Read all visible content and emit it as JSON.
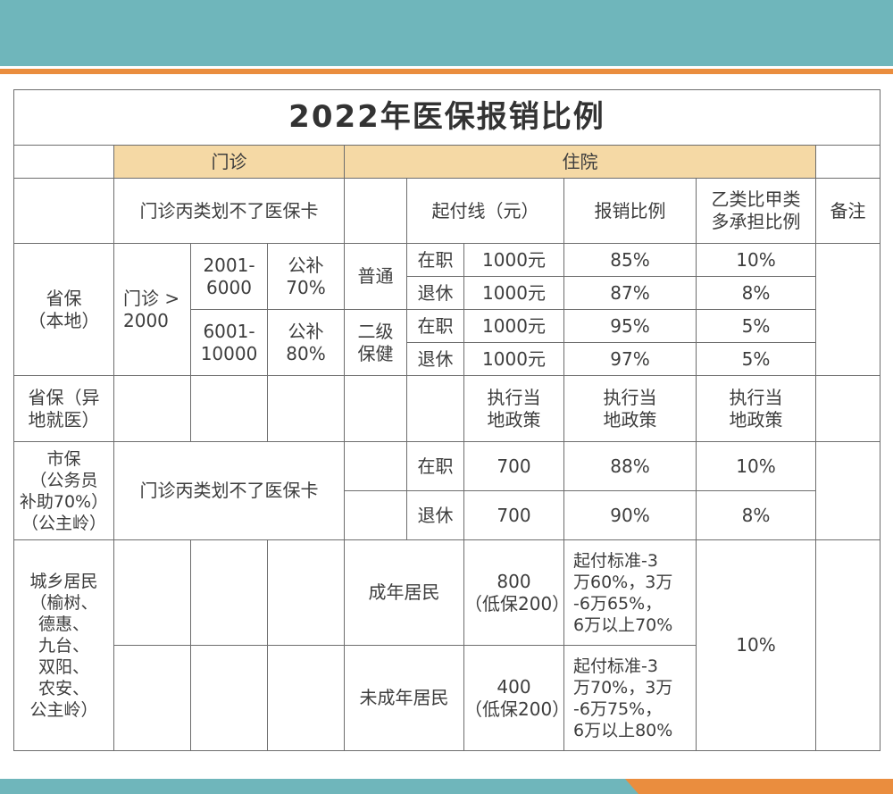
{
  "title": "2022年医保报销比例",
  "header": {
    "outpatient": "门诊",
    "inpatient": "住院",
    "outpatient_note": "门诊丙类划不了医保卡",
    "deductible": "起付线（元）",
    "ratio": "报销比例",
    "class_b_extra": "乙类比甲类\n多承担比例",
    "remarks": "备注"
  },
  "provincial_local": {
    "label": "省保\n（本地）",
    "outpatient_threshold": "门诊 >\n2000",
    "band1": {
      "range": "2001-\n6000",
      "subsidy": "公补\n70%"
    },
    "band2": {
      "range": "6001-\n10000",
      "subsidy": "公补\n80%"
    },
    "group1": "普通",
    "group2": "二级\n保健",
    "rows": [
      {
        "status": "在职",
        "deductible": "1000元",
        "ratio": "85%",
        "extra": "10%"
      },
      {
        "status": "退休",
        "deductible": "1000元",
        "ratio": "87%",
        "extra": "8%"
      },
      {
        "status": "在职",
        "deductible": "1000元",
        "ratio": "95%",
        "extra": "5%"
      },
      {
        "status": "退休",
        "deductible": "1000元",
        "ratio": "97%",
        "extra": "5%"
      }
    ]
  },
  "provincial_remote": {
    "label": "省保（异\n地就医）",
    "deductible": "执行当\n地政策",
    "ratio": "执行当\n地政策",
    "extra": "执行当\n地政策"
  },
  "city": {
    "label": "市保\n（公务员\n补助70%）\n（公主岭）",
    "outpatient_note": "门诊丙类划不了医保卡",
    "rows": [
      {
        "status": "在职",
        "deductible": "700",
        "ratio": "88%",
        "extra": "10%"
      },
      {
        "status": "退休",
        "deductible": "700",
        "ratio": "90%",
        "extra": "8%"
      }
    ]
  },
  "residents": {
    "label": "城乡居民\n（榆树、\n德惠、\n九台、\n双阳、\n农安、\n公主岭）",
    "extra": "10%",
    "rows": [
      {
        "group": "成年居民",
        "deductible": "800\n（低保200）",
        "ratio": "起付标准-3\n万60%，3万\n-6万65%，\n6万以上70%"
      },
      {
        "group": "未成年居民",
        "deductible": "400\n（低保200）",
        "ratio": "起付标准-3\n万70%，3万\n-6万75%，\n6万以上80%"
      }
    ]
  }
}
